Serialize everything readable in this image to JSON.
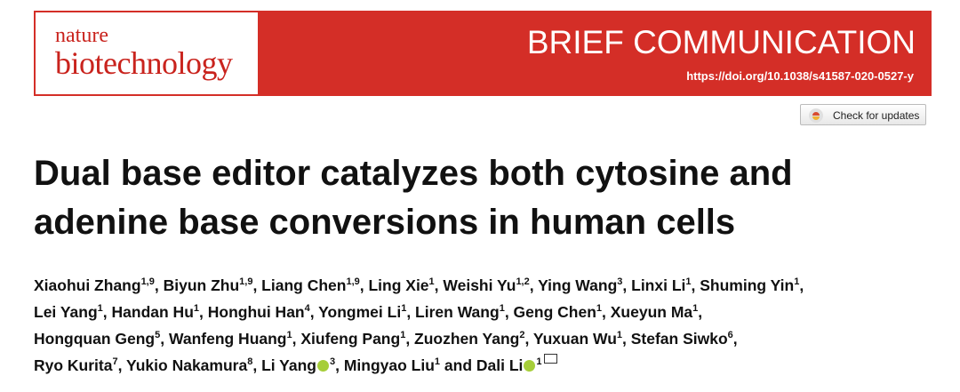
{
  "header": {
    "journal_line1": "nature",
    "journal_line2": "biotechnology",
    "article_type": "BRIEF COMMUNICATION",
    "doi": "https://doi.org/10.1038/s41587-020-0527-y"
  },
  "check_updates": "Check for updates",
  "title_lines": [
    "Dual base editor catalyzes both cytosine and",
    "adenine base conversions in human cells"
  ],
  "author_lines": [
    [
      {
        "name": "Xiaohui Zhang",
        "sup": "1,9",
        "sep": ", "
      },
      {
        "name": "Biyun Zhu",
        "sup": "1,9",
        "sep": ", "
      },
      {
        "name": "Liang Chen",
        "sup": "1,9",
        "sep": ", "
      },
      {
        "name": "Ling Xie",
        "sup": "1",
        "sep": ", "
      },
      {
        "name": "Weishi Yu",
        "sup": "1,2",
        "sep": ", "
      },
      {
        "name": "Ying Wang",
        "sup": "3",
        "sep": ", "
      },
      {
        "name": "Linxi Li",
        "sup": "1",
        "sep": ", "
      },
      {
        "name": "Shuming Yin",
        "sup": "1",
        "sep": ", "
      }
    ],
    [
      {
        "name": "Lei Yang",
        "sup": "1",
        "sep": ", "
      },
      {
        "name": "Handan Hu",
        "sup": "1",
        "sep": ", "
      },
      {
        "name": "Honghui Han",
        "sup": "4",
        "sep": ", "
      },
      {
        "name": "Yongmei Li",
        "sup": "1",
        "sep": ", "
      },
      {
        "name": "Liren Wang",
        "sup": "1",
        "sep": ", "
      },
      {
        "name": "Geng Chen",
        "sup": "1",
        "sep": ", "
      },
      {
        "name": "Xueyun Ma",
        "sup": "1",
        "sep": ", "
      }
    ],
    [
      {
        "name": "Hongquan Geng",
        "sup": "5",
        "sep": ", "
      },
      {
        "name": "Wanfeng Huang",
        "sup": "1",
        "sep": ", "
      },
      {
        "name": "Xiufeng Pang",
        "sup": "1",
        "sep": ", "
      },
      {
        "name": "Zuozhen Yang",
        "sup": "2",
        "sep": ", "
      },
      {
        "name": "Yuxuan Wu",
        "sup": "1",
        "sep": ", "
      },
      {
        "name": "Stefan Siwko",
        "sup": "6",
        "sep": ", "
      }
    ],
    [
      {
        "name": "Ryo Kurita",
        "sup": "7",
        "sep": ", "
      },
      {
        "name": "Yukio Nakamura",
        "sup": "8",
        "sep": ", "
      },
      {
        "name": "Li Yang",
        "sup": "3",
        "orcid": true,
        "sep": ", "
      },
      {
        "name": "Mingyao Liu",
        "sup": "1",
        "sep": " and "
      },
      {
        "name": "Dali Li",
        "sup": "1",
        "orcid": true,
        "email": true
      }
    ]
  ]
}
